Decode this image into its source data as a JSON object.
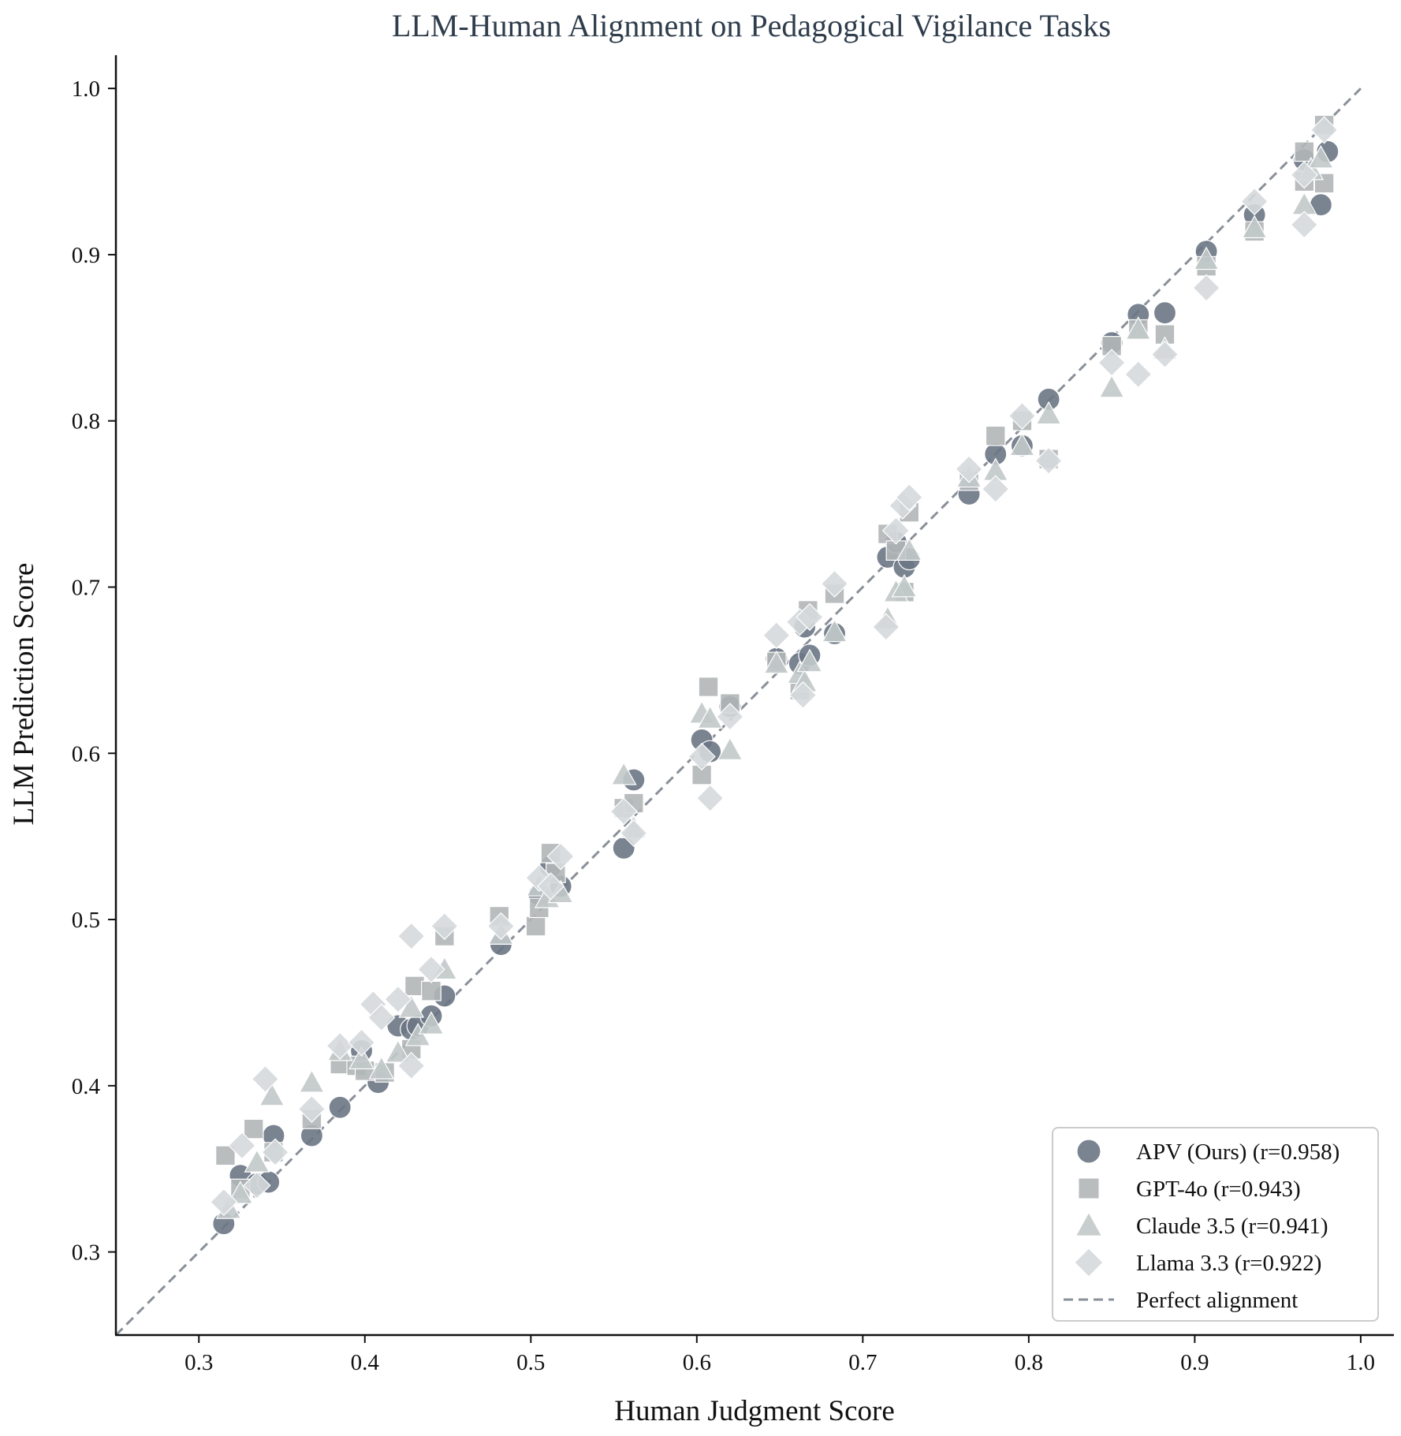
{
  "chart_data": {
    "type": "scatter",
    "title": "LLM-Human Alignment on Pedagogical Vigilance Tasks",
    "xlabel": "Human Judgment Score",
    "ylabel": "LLM Prediction Score",
    "xlim": [
      0.25,
      1.02
    ],
    "ylim": [
      0.25,
      1.02
    ],
    "xticks": [
      "0.3",
      "0.4",
      "0.5",
      "0.6",
      "0.7",
      "0.8",
      "0.9",
      "1.0"
    ],
    "yticks": [
      "0.3",
      "0.4",
      "0.5",
      "0.6",
      "0.7",
      "0.8",
      "0.9",
      "1.0"
    ],
    "grid": false,
    "legend_position": "bottom-right",
    "reference_line": {
      "label": "Perfect alignment",
      "from": [
        0.25,
        0.25
      ],
      "to": [
        1.0,
        1.0
      ],
      "color": "#8a9099",
      "style": "dashed"
    },
    "series": [
      {
        "name": "APV (Ours) (r=0.958)",
        "marker": "circle",
        "color": "#6b7684",
        "points": [
          [
            0.315,
            0.317
          ],
          [
            0.325,
            0.346
          ],
          [
            0.335,
            0.341
          ],
          [
            0.342,
            0.342
          ],
          [
            0.345,
            0.37
          ],
          [
            0.368,
            0.37
          ],
          [
            0.385,
            0.387
          ],
          [
            0.398,
            0.421
          ],
          [
            0.408,
            0.402
          ],
          [
            0.42,
            0.436
          ],
          [
            0.428,
            0.434
          ],
          [
            0.432,
            0.436
          ],
          [
            0.44,
            0.442
          ],
          [
            0.448,
            0.454
          ],
          [
            0.482,
            0.485
          ],
          [
            0.505,
            0.515
          ],
          [
            0.512,
            0.532
          ],
          [
            0.518,
            0.52
          ],
          [
            0.556,
            0.543
          ],
          [
            0.562,
            0.584
          ],
          [
            0.603,
            0.608
          ],
          [
            0.608,
            0.601
          ],
          [
            0.62,
            0.628
          ],
          [
            0.648,
            0.657
          ],
          [
            0.662,
            0.654
          ],
          [
            0.665,
            0.676
          ],
          [
            0.668,
            0.659
          ],
          [
            0.683,
            0.672
          ],
          [
            0.715,
            0.718
          ],
          [
            0.72,
            0.727
          ],
          [
            0.725,
            0.712
          ],
          [
            0.728,
            0.717
          ],
          [
            0.764,
            0.756
          ],
          [
            0.78,
            0.78
          ],
          [
            0.796,
            0.785
          ],
          [
            0.812,
            0.813
          ],
          [
            0.85,
            0.847
          ],
          [
            0.866,
            0.864
          ],
          [
            0.882,
            0.865
          ],
          [
            0.907,
            0.902
          ],
          [
            0.936,
            0.924
          ],
          [
            0.966,
            0.957
          ],
          [
            0.976,
            0.93
          ],
          [
            0.98,
            0.962
          ]
        ]
      },
      {
        "name": "GPT-4o (r=0.943)",
        "marker": "square",
        "color": "#b1b6b7",
        "points": [
          [
            0.316,
            0.358
          ],
          [
            0.325,
            0.338
          ],
          [
            0.333,
            0.374
          ],
          [
            0.345,
            0.36
          ],
          [
            0.368,
            0.38
          ],
          [
            0.385,
            0.413
          ],
          [
            0.395,
            0.412
          ],
          [
            0.4,
            0.409
          ],
          [
            0.412,
            0.408
          ],
          [
            0.428,
            0.422
          ],
          [
            0.43,
            0.46
          ],
          [
            0.44,
            0.457
          ],
          [
            0.448,
            0.49
          ],
          [
            0.481,
            0.502
          ],
          [
            0.503,
            0.496
          ],
          [
            0.505,
            0.507
          ],
          [
            0.512,
            0.54
          ],
          [
            0.515,
            0.528
          ],
          [
            0.556,
            0.567
          ],
          [
            0.562,
            0.57
          ],
          [
            0.603,
            0.587
          ],
          [
            0.607,
            0.64
          ],
          [
            0.62,
            0.63
          ],
          [
            0.648,
            0.655
          ],
          [
            0.662,
            0.638
          ],
          [
            0.667,
            0.686
          ],
          [
            0.683,
            0.696
          ],
          [
            0.715,
            0.732
          ],
          [
            0.72,
            0.722
          ],
          [
            0.725,
            0.697
          ],
          [
            0.728,
            0.745
          ],
          [
            0.764,
            0.764
          ],
          [
            0.78,
            0.791
          ],
          [
            0.796,
            0.8
          ],
          [
            0.812,
            0.777
          ],
          [
            0.85,
            0.845
          ],
          [
            0.866,
            0.855
          ],
          [
            0.882,
            0.852
          ],
          [
            0.907,
            0.893
          ],
          [
            0.936,
            0.914
          ],
          [
            0.966,
            0.962
          ],
          [
            0.966,
            0.944
          ],
          [
            0.978,
            0.943
          ],
          [
            0.978,
            0.978
          ]
        ]
      },
      {
        "name": "Claude 3.5 (r=0.941)",
        "marker": "triangle",
        "color": "#c2c9c9",
        "points": [
          [
            0.318,
            0.326
          ],
          [
            0.325,
            0.335
          ],
          [
            0.335,
            0.354
          ],
          [
            0.344,
            0.394
          ],
          [
            0.368,
            0.402
          ],
          [
            0.385,
            0.421
          ],
          [
            0.398,
            0.416
          ],
          [
            0.41,
            0.41
          ],
          [
            0.42,
            0.42
          ],
          [
            0.428,
            0.447
          ],
          [
            0.432,
            0.43
          ],
          [
            0.44,
            0.437
          ],
          [
            0.448,
            0.47
          ],
          [
            0.482,
            0.491
          ],
          [
            0.505,
            0.52
          ],
          [
            0.51,
            0.513
          ],
          [
            0.518,
            0.516
          ],
          [
            0.556,
            0.587
          ],
          [
            0.562,
            0.555
          ],
          [
            0.603,
            0.624
          ],
          [
            0.608,
            0.621
          ],
          [
            0.62,
            0.602
          ],
          [
            0.648,
            0.654
          ],
          [
            0.662,
            0.648
          ],
          [
            0.665,
            0.643
          ],
          [
            0.668,
            0.655
          ],
          [
            0.683,
            0.673
          ],
          [
            0.715,
            0.681
          ],
          [
            0.72,
            0.697
          ],
          [
            0.725,
            0.7
          ],
          [
            0.728,
            0.722
          ],
          [
            0.764,
            0.766
          ],
          [
            0.78,
            0.77
          ],
          [
            0.796,
            0.785
          ],
          [
            0.812,
            0.804
          ],
          [
            0.85,
            0.82
          ],
          [
            0.866,
            0.855
          ],
          [
            0.882,
            0.843
          ],
          [
            0.907,
            0.897
          ],
          [
            0.936,
            0.916
          ],
          [
            0.966,
            0.93
          ],
          [
            0.97,
            0.951
          ],
          [
            0.976,
            0.958
          ]
        ]
      },
      {
        "name": "Llama 3.3 (r=0.922)",
        "marker": "diamond",
        "color": "#d5d9dc",
        "points": [
          [
            0.315,
            0.33
          ],
          [
            0.326,
            0.364
          ],
          [
            0.335,
            0.34
          ],
          [
            0.34,
            0.404
          ],
          [
            0.346,
            0.36
          ],
          [
            0.368,
            0.386
          ],
          [
            0.385,
            0.424
          ],
          [
            0.398,
            0.426
          ],
          [
            0.405,
            0.449
          ],
          [
            0.41,
            0.441
          ],
          [
            0.42,
            0.452
          ],
          [
            0.428,
            0.412
          ],
          [
            0.428,
            0.49
          ],
          [
            0.44,
            0.47
          ],
          [
            0.448,
            0.496
          ],
          [
            0.482,
            0.496
          ],
          [
            0.505,
            0.525
          ],
          [
            0.512,
            0.52
          ],
          [
            0.518,
            0.538
          ],
          [
            0.556,
            0.565
          ],
          [
            0.562,
            0.552
          ],
          [
            0.603,
            0.598
          ],
          [
            0.608,
            0.573
          ],
          [
            0.62,
            0.622
          ],
          [
            0.648,
            0.671
          ],
          [
            0.662,
            0.679
          ],
          [
            0.664,
            0.635
          ],
          [
            0.668,
            0.682
          ],
          [
            0.683,
            0.702
          ],
          [
            0.714,
            0.676
          ],
          [
            0.72,
            0.734
          ],
          [
            0.724,
            0.749
          ],
          [
            0.728,
            0.754
          ],
          [
            0.764,
            0.771
          ],
          [
            0.78,
            0.759
          ],
          [
            0.796,
            0.803
          ],
          [
            0.812,
            0.776
          ],
          [
            0.85,
            0.835
          ],
          [
            0.866,
            0.828
          ],
          [
            0.882,
            0.84
          ],
          [
            0.907,
            0.88
          ],
          [
            0.936,
            0.932
          ],
          [
            0.966,
            0.918
          ],
          [
            0.966,
            0.948
          ],
          [
            0.978,
            0.975
          ]
        ]
      }
    ]
  }
}
